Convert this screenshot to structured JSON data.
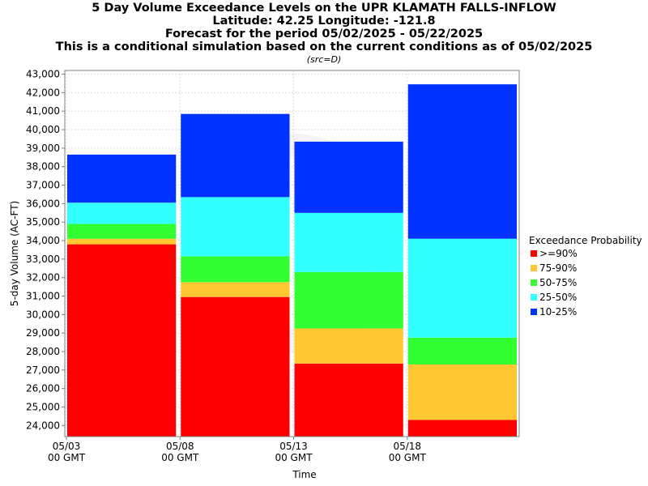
{
  "chart_data": {
    "type": "bar",
    "stacked": true,
    "title": "5 Day Volume Exceedance Levels on the UPR KLAMATH FALLS-INFLOW",
    "subtitle_lines": [
      "Latitude: 42.25 Longitude: -121.8",
      "Forecast for the period 05/02/2025 - 05/22/2025",
      "This is a conditional simulation based on the current conditions as of 05/02/2025"
    ],
    "src_note": "(src=D)",
    "xlabel": "Time",
    "ylabel": "5-day Volume (AC-FT)",
    "ylim": [
      23400,
      43200
    ],
    "yticks": [
      24000,
      25000,
      26000,
      27000,
      28000,
      29000,
      30000,
      31000,
      32000,
      33000,
      34000,
      35000,
      36000,
      37000,
      38000,
      39000,
      40000,
      41000,
      42000,
      43000
    ],
    "ytick_labels": [
      "24,000",
      "25,000",
      "26,000",
      "27,000",
      "28,000",
      "29,000",
      "30,000",
      "31,000",
      "32,000",
      "33,000",
      "34,000",
      "35,000",
      "36,000",
      "37,000",
      "38,000",
      "39,000",
      "40,000",
      "41,000",
      "42,000",
      "43,000"
    ],
    "xticks": [
      {
        "line1": "05/03",
        "line2": "00 GMT"
      },
      {
        "line1": "05/08",
        "line2": "00 GMT"
      },
      {
        "line1": "05/13",
        "line2": "00 GMT"
      },
      {
        "line1": "05/18",
        "line2": "00 GMT"
      }
    ],
    "grid": true,
    "legend_position": "right",
    "legend_title": "Exceedance Probability",
    "series": [
      {
        "name": ">=90%",
        "color": "#ff0000"
      },
      {
        "name": "75-90%",
        "color": "#ffc832"
      },
      {
        "name": "50-75%",
        "color": "#32ff32"
      },
      {
        "name": "25-50%",
        "color": "#32ffff"
      },
      {
        "name": "10-25%",
        "color": "#0032ff"
      }
    ],
    "bars": [
      {
        "period": "05/03 - 05/08",
        "levels": [
          33800,
          34100,
          34900,
          36050,
          38650
        ]
      },
      {
        "period": "05/08 - 05/13",
        "levels": [
          30950,
          31750,
          33150,
          36350,
          40850
        ]
      },
      {
        "period": "05/13 - 05/18",
        "levels": [
          27350,
          29250,
          32300,
          35500,
          39350
        ]
      },
      {
        "period": "05/18 - 05/23",
        "levels": [
          24300,
          27300,
          28750,
          34100,
          42450
        ]
      }
    ]
  }
}
